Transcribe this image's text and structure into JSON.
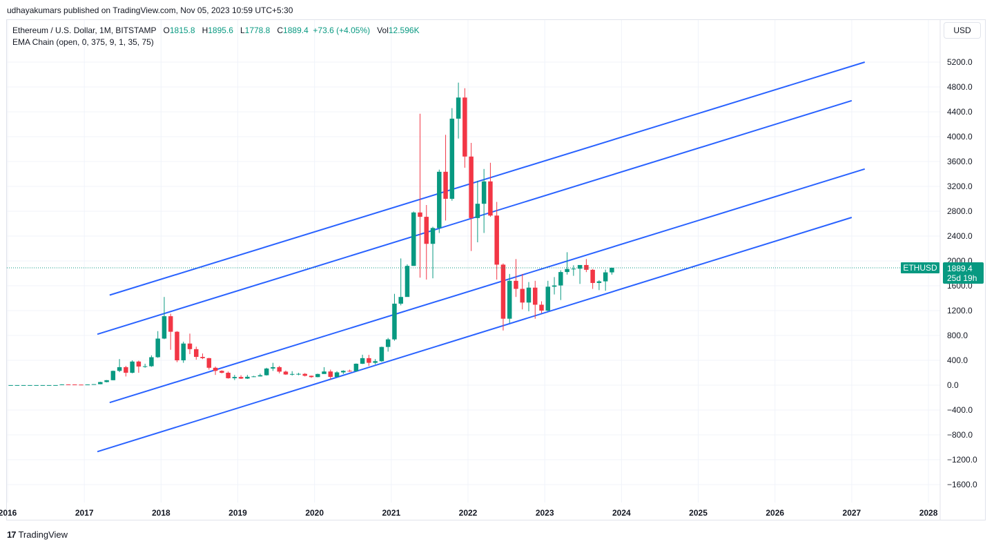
{
  "header": {
    "published": "udhayakumars published on TradingView.com, Nov 05, 2023 10:59 UTC+5:30"
  },
  "legend": {
    "symbol": "Ethereum / U.S. Dollar, 1M, BITSTAMP",
    "o_label": "O",
    "o_value": "1815.8",
    "h_label": "H",
    "h_value": "1895.6",
    "l_label": "L",
    "l_value": "1778.8",
    "c_label": "C",
    "c_value": "1889.4",
    "change": "+73.6 (+4.05%)",
    "vol_label": "Vol",
    "vol_value": "12.596K",
    "indicator": "EMA Chain (open, 0, 375, 9, 1, 35, 75)"
  },
  "currency": "USD",
  "footer": {
    "brand": "TradingView",
    "logo": "17"
  },
  "colors": {
    "up": "#089981",
    "down": "#f23645",
    "channel": "#2962ff",
    "grid": "#f0f3fa"
  },
  "chart_data": {
    "type": "candlestick",
    "title": "Ethereum / U.S. Dollar, 1M, BITSTAMP",
    "ylim": [
      -1880,
      5600
    ],
    "xlim": [
      2016.0,
      2028.2
    ],
    "y_ticks": [
      5200,
      4800,
      4400,
      4000,
      3600,
      3200,
      2800,
      2400,
      2000,
      1600,
      1200,
      800,
      400,
      0,
      -400,
      -800,
      -1200,
      -1600
    ],
    "y_tick_labels": [
      "5200.0",
      "4800.0",
      "4400.0",
      "4000.0",
      "3600.0",
      "3200.0",
      "2800.0",
      "2400.0",
      "2000.0",
      "1600.0",
      "1200.0",
      "800.0",
      "400.0",
      "0.0",
      "−400.0",
      "−800.0",
      "−1200.0",
      "−1600.0"
    ],
    "x_ticks": [
      2016,
      2017,
      2018,
      2019,
      2020,
      2021,
      2022,
      2023,
      2024,
      2025,
      2026,
      2027,
      2028
    ],
    "x_tick_labels": [
      "2016",
      "2017",
      "2018",
      "2019",
      "2020",
      "2021",
      "2022",
      "2023",
      "2024",
      "2025",
      "2026",
      "2027",
      "2028"
    ],
    "last_price": {
      "symbol": "ETHUSD",
      "value": "1889.4",
      "countdown": "25d 19h",
      "price": 1889.4
    },
    "channel_lines": [
      {
        "x": [
          2017.33,
          2027.17
        ],
        "y": [
          1450,
          5200
        ]
      },
      {
        "x": [
          2017.17,
          2027.0
        ],
        "y": [
          820,
          4580
        ]
      },
      {
        "x": [
          2017.33,
          2027.17
        ],
        "y": [
          -280,
          3480
        ]
      },
      {
        "x": [
          2017.17,
          2027.0
        ],
        "y": [
          -1070,
          2700
        ]
      }
    ],
    "candles": [
      {
        "t": "2016-01",
        "o": 1,
        "h": 1,
        "l": 1,
        "c": 1
      },
      {
        "t": "2016-02",
        "o": 1,
        "h": 1,
        "l": 1,
        "c": 1
      },
      {
        "t": "2016-03",
        "o": 1,
        "h": 1,
        "l": 1,
        "c": 1
      },
      {
        "t": "2016-04",
        "o": 1,
        "h": 1,
        "l": 1,
        "c": 1
      },
      {
        "t": "2016-05",
        "o": 1,
        "h": 1,
        "l": 1,
        "c": 1
      },
      {
        "t": "2016-06",
        "o": 1,
        "h": 1,
        "l": 1,
        "c": 1
      },
      {
        "t": "2016-07",
        "o": 1,
        "h": 1,
        "l": 1,
        "c": 1
      },
      {
        "t": "2016-08",
        "o": 1,
        "h": 1,
        "l": 1,
        "c": 1
      },
      {
        "t": "2016-09",
        "o": 12,
        "h": 14,
        "l": 10,
        "c": 12
      },
      {
        "t": "2016-10",
        "o": 12,
        "h": 13,
        "l": 10,
        "c": 11
      },
      {
        "t": "2016-11",
        "o": 11,
        "h": 12,
        "l": 8,
        "c": 9
      },
      {
        "t": "2016-12",
        "o": 9,
        "h": 10,
        "l": 7,
        "c": 8
      },
      {
        "t": "2017-01",
        "o": 8,
        "h": 12,
        "l": 8,
        "c": 11
      },
      {
        "t": "2017-02",
        "o": 11,
        "h": 16,
        "l": 10,
        "c": 16
      },
      {
        "t": "2017-03",
        "o": 16,
        "h": 55,
        "l": 15,
        "c": 50
      },
      {
        "t": "2017-04",
        "o": 50,
        "h": 82,
        "l": 45,
        "c": 80
      },
      {
        "t": "2017-05",
        "o": 80,
        "h": 235,
        "l": 78,
        "c": 230
      },
      {
        "t": "2017-06",
        "o": 230,
        "h": 420,
        "l": 210,
        "c": 290
      },
      {
        "t": "2017-07",
        "o": 290,
        "h": 310,
        "l": 140,
        "c": 200
      },
      {
        "t": "2017-08",
        "o": 200,
        "h": 400,
        "l": 190,
        "c": 380
      },
      {
        "t": "2017-09",
        "o": 380,
        "h": 395,
        "l": 200,
        "c": 300
      },
      {
        "t": "2017-10",
        "o": 300,
        "h": 345,
        "l": 280,
        "c": 305
      },
      {
        "t": "2017-11",
        "o": 305,
        "h": 480,
        "l": 295,
        "c": 450
      },
      {
        "t": "2017-12",
        "o": 450,
        "h": 870,
        "l": 440,
        "c": 750
      },
      {
        "t": "2018-01",
        "o": 750,
        "h": 1420,
        "l": 740,
        "c": 1110
      },
      {
        "t": "2018-02",
        "o": 1110,
        "h": 1150,
        "l": 570,
        "c": 860
      },
      {
        "t": "2018-03",
        "o": 860,
        "h": 870,
        "l": 370,
        "c": 400
      },
      {
        "t": "2018-04",
        "o": 400,
        "h": 700,
        "l": 360,
        "c": 670
      },
      {
        "t": "2018-05",
        "o": 670,
        "h": 830,
        "l": 500,
        "c": 580
      },
      {
        "t": "2018-06",
        "o": 580,
        "h": 620,
        "l": 410,
        "c": 455
      },
      {
        "t": "2018-07",
        "o": 455,
        "h": 510,
        "l": 420,
        "c": 435
      },
      {
        "t": "2018-08",
        "o": 435,
        "h": 440,
        "l": 250,
        "c": 280
      },
      {
        "t": "2018-09",
        "o": 280,
        "h": 300,
        "l": 165,
        "c": 230
      },
      {
        "t": "2018-10",
        "o": 230,
        "h": 240,
        "l": 190,
        "c": 200
      },
      {
        "t": "2018-11",
        "o": 200,
        "h": 220,
        "l": 105,
        "c": 112
      },
      {
        "t": "2018-12",
        "o": 112,
        "h": 165,
        "l": 82,
        "c": 132
      },
      {
        "t": "2019-01",
        "o": 132,
        "h": 160,
        "l": 100,
        "c": 106
      },
      {
        "t": "2019-02",
        "o": 106,
        "h": 165,
        "l": 100,
        "c": 135
      },
      {
        "t": "2019-03",
        "o": 135,
        "h": 150,
        "l": 130,
        "c": 141
      },
      {
        "t": "2019-04",
        "o": 141,
        "h": 185,
        "l": 140,
        "c": 160
      },
      {
        "t": "2019-05",
        "o": 160,
        "h": 280,
        "l": 155,
        "c": 268
      },
      {
        "t": "2019-06",
        "o": 268,
        "h": 360,
        "l": 230,
        "c": 290
      },
      {
        "t": "2019-07",
        "o": 290,
        "h": 310,
        "l": 190,
        "c": 218
      },
      {
        "t": "2019-08",
        "o": 218,
        "h": 235,
        "l": 165,
        "c": 172
      },
      {
        "t": "2019-09",
        "o": 172,
        "h": 225,
        "l": 155,
        "c": 180
      },
      {
        "t": "2019-10",
        "o": 180,
        "h": 198,
        "l": 160,
        "c": 182
      },
      {
        "t": "2019-11",
        "o": 182,
        "h": 195,
        "l": 140,
        "c": 151
      },
      {
        "t": "2019-12",
        "o": 151,
        "h": 155,
        "l": 118,
        "c": 130
      },
      {
        "t": "2020-01",
        "o": 130,
        "h": 185,
        "l": 127,
        "c": 180
      },
      {
        "t": "2020-02",
        "o": 180,
        "h": 290,
        "l": 210,
        "c": 220
      },
      {
        "t": "2020-03",
        "o": 220,
        "h": 250,
        "l": 90,
        "c": 133
      },
      {
        "t": "2020-04",
        "o": 133,
        "h": 225,
        "l": 130,
        "c": 206
      },
      {
        "t": "2020-05",
        "o": 206,
        "h": 240,
        "l": 180,
        "c": 231
      },
      {
        "t": "2020-06",
        "o": 231,
        "h": 250,
        "l": 215,
        "c": 225
      },
      {
        "t": "2020-07",
        "o": 225,
        "h": 350,
        "l": 220,
        "c": 345
      },
      {
        "t": "2020-08",
        "o": 345,
        "h": 490,
        "l": 340,
        "c": 435
      },
      {
        "t": "2020-09",
        "o": 435,
        "h": 488,
        "l": 310,
        "c": 360
      },
      {
        "t": "2020-10",
        "o": 360,
        "h": 420,
        "l": 335,
        "c": 386
      },
      {
        "t": "2020-11",
        "o": 386,
        "h": 620,
        "l": 375,
        "c": 615
      },
      {
        "t": "2020-12",
        "o": 615,
        "h": 760,
        "l": 540,
        "c": 737
      },
      {
        "t": "2021-01",
        "o": 737,
        "h": 1470,
        "l": 715,
        "c": 1312
      },
      {
        "t": "2021-02",
        "o": 1312,
        "h": 2040,
        "l": 1285,
        "c": 1420
      },
      {
        "t": "2021-03",
        "o": 1420,
        "h": 1945,
        "l": 1450,
        "c": 1920
      },
      {
        "t": "2021-04",
        "o": 1920,
        "h": 2795,
        "l": 1920,
        "c": 2780
      },
      {
        "t": "2021-05",
        "o": 2780,
        "h": 4370,
        "l": 1730,
        "c": 2710
      },
      {
        "t": "2021-06",
        "o": 2710,
        "h": 2900,
        "l": 1700,
        "c": 2275
      },
      {
        "t": "2021-07",
        "o": 2275,
        "h": 2550,
        "l": 1720,
        "c": 2530
      },
      {
        "t": "2021-08",
        "o": 2530,
        "h": 3470,
        "l": 2450,
        "c": 3435
      },
      {
        "t": "2021-09",
        "o": 3435,
        "h": 4030,
        "l": 2650,
        "c": 3000
      },
      {
        "t": "2021-10",
        "o": 3000,
        "h": 4460,
        "l": 2970,
        "c": 4290
      },
      {
        "t": "2021-11",
        "o": 4290,
        "h": 4870,
        "l": 3970,
        "c": 4630
      },
      {
        "t": "2021-12",
        "o": 4630,
        "h": 4780,
        "l": 3500,
        "c": 3680
      },
      {
        "t": "2022-01",
        "o": 3680,
        "h": 3900,
        "l": 2160,
        "c": 2690
      },
      {
        "t": "2022-02",
        "o": 2690,
        "h": 3290,
        "l": 2300,
        "c": 2920
      },
      {
        "t": "2022-03",
        "o": 2920,
        "h": 3480,
        "l": 2450,
        "c": 3280
      },
      {
        "t": "2022-04",
        "o": 3280,
        "h": 3580,
        "l": 2710,
        "c": 2730
      },
      {
        "t": "2022-05",
        "o": 2730,
        "h": 2950,
        "l": 1700,
        "c": 1940
      },
      {
        "t": "2022-06",
        "o": 1940,
        "h": 1960,
        "l": 880,
        "c": 1070
      },
      {
        "t": "2022-07",
        "o": 1070,
        "h": 1790,
        "l": 1000,
        "c": 1680
      },
      {
        "t": "2022-08",
        "o": 1680,
        "h": 2030,
        "l": 1420,
        "c": 1550
      },
      {
        "t": "2022-09",
        "o": 1550,
        "h": 1790,
        "l": 1220,
        "c": 1330
      },
      {
        "t": "2022-10",
        "o": 1330,
        "h": 1660,
        "l": 1190,
        "c": 1570
      },
      {
        "t": "2022-11",
        "o": 1570,
        "h": 1680,
        "l": 1070,
        "c": 1295
      },
      {
        "t": "2022-12",
        "o": 1295,
        "h": 1350,
        "l": 1160,
        "c": 1200
      },
      {
        "t": "2023-01",
        "o": 1200,
        "h": 1680,
        "l": 1190,
        "c": 1585
      },
      {
        "t": "2023-02",
        "o": 1585,
        "h": 1740,
        "l": 1460,
        "c": 1605
      },
      {
        "t": "2023-03",
        "o": 1605,
        "h": 1850,
        "l": 1370,
        "c": 1821
      },
      {
        "t": "2023-04",
        "o": 1821,
        "h": 2140,
        "l": 1780,
        "c": 1870
      },
      {
        "t": "2023-05",
        "o": 1870,
        "h": 1930,
        "l": 1760,
        "c": 1875
      },
      {
        "t": "2023-06",
        "o": 1875,
        "h": 1930,
        "l": 1630,
        "c": 1934
      },
      {
        "t": "2023-07",
        "o": 1934,
        "h": 2030,
        "l": 1820,
        "c": 1857
      },
      {
        "t": "2023-08",
        "o": 1857,
        "h": 1870,
        "l": 1550,
        "c": 1645
      },
      {
        "t": "2023-09",
        "o": 1645,
        "h": 1690,
        "l": 1530,
        "c": 1671
      },
      {
        "t": "2023-10",
        "o": 1671,
        "h": 1860,
        "l": 1520,
        "c": 1815.8
      },
      {
        "t": "2023-11",
        "o": 1815.8,
        "h": 1895.6,
        "l": 1778.8,
        "c": 1889.4
      }
    ]
  }
}
